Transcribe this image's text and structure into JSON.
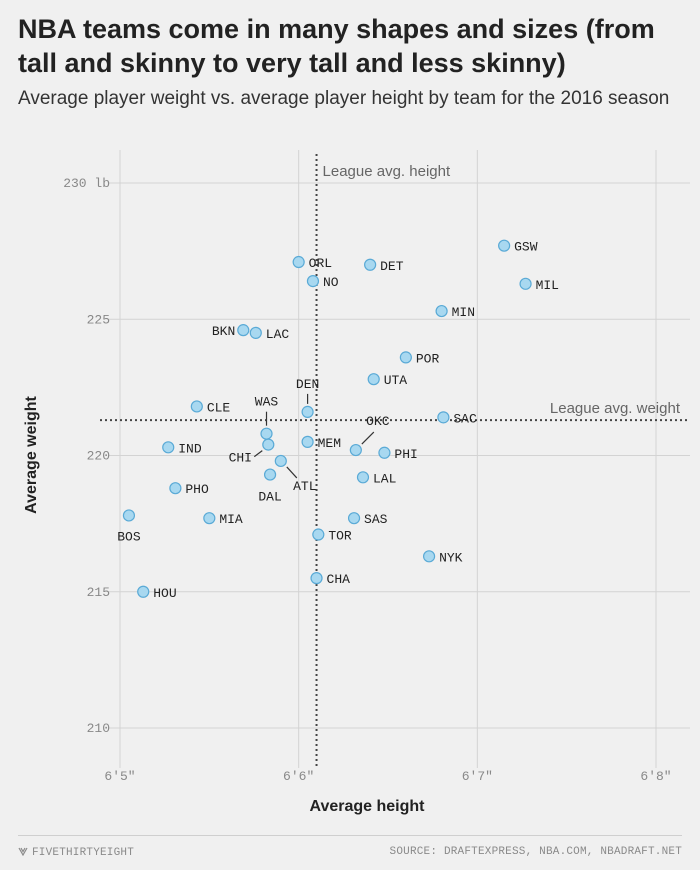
{
  "header": {
    "title": "NBA teams come in many shapes and sizes (from tall and skinny to very tall and less skinny)",
    "subtitle": "Average player weight vs. average player height by team for the 2016 season"
  },
  "footer": {
    "brand": "FIVETHIRTYEIGHT",
    "source": "SOURCE: DRAFTEXPRESS, NBA.COM, NBADRAFT.NET"
  },
  "chart_data": {
    "type": "scatter",
    "title": "NBA teams come in many shapes and sizes (from tall and skinny to very tall and less skinny)",
    "subtitle": "Average player weight vs. average player height by team for the 2016 season",
    "xlabel": "Average height",
    "ylabel": "Average weight",
    "x_unit": "inches",
    "xlim": [
      76.8,
      80.1
    ],
    "ylim": [
      209,
      231
    ],
    "x_ticks": [
      {
        "value": 77,
        "label": "6'5\""
      },
      {
        "value": 78,
        "label": "6'6\""
      },
      {
        "value": 79,
        "label": "6'7\""
      },
      {
        "value": 80,
        "label": "6'8\""
      }
    ],
    "y_ticks": [
      {
        "value": 210,
        "label": "210"
      },
      {
        "value": 215,
        "label": "215"
      },
      {
        "value": 220,
        "label": "220"
      },
      {
        "value": 225,
        "label": "225"
      },
      {
        "value": 230,
        "label": "230 lb"
      }
    ],
    "grid": true,
    "point_color": "#a8d8f0",
    "point_stroke": "#5aaad6",
    "reference_lines": [
      {
        "axis": "x",
        "value": 78.1,
        "label": "League avg. height"
      },
      {
        "axis": "y",
        "value": 221.3,
        "label": "League avg. weight"
      }
    ],
    "points": [
      {
        "team": "GSW",
        "x": 79.15,
        "y": 227.7
      },
      {
        "team": "MIL",
        "x": 79.27,
        "y": 226.3
      },
      {
        "team": "DET",
        "x": 78.4,
        "y": 227.0
      },
      {
        "team": "ORL",
        "x": 78.0,
        "y": 227.1
      },
      {
        "team": "NO",
        "x": 78.08,
        "y": 226.4
      },
      {
        "team": "MIN",
        "x": 78.8,
        "y": 225.3
      },
      {
        "team": "BKN",
        "x": 77.69,
        "y": 224.6
      },
      {
        "team": "LAC",
        "x": 77.76,
        "y": 224.5
      },
      {
        "team": "POR",
        "x": 78.6,
        "y": 223.6
      },
      {
        "team": "UTA",
        "x": 78.42,
        "y": 222.8
      },
      {
        "team": "DEN",
        "x": 78.05,
        "y": 221.6
      },
      {
        "team": "CLE",
        "x": 77.43,
        "y": 221.8
      },
      {
        "team": "WAS",
        "x": 77.82,
        "y": 220.8
      },
      {
        "team": "SAC",
        "x": 78.81,
        "y": 221.4
      },
      {
        "team": "OKC",
        "x": 78.32,
        "y": 220.2
      },
      {
        "team": "MEM",
        "x": 78.05,
        "y": 220.5
      },
      {
        "team": "PHI",
        "x": 78.48,
        "y": 220.1
      },
      {
        "team": "IND",
        "x": 77.27,
        "y": 220.3
      },
      {
        "team": "CHI",
        "x": 77.83,
        "y": 220.4
      },
      {
        "team": "ATL",
        "x": 77.9,
        "y": 219.8
      },
      {
        "team": "DAL",
        "x": 77.84,
        "y": 219.3
      },
      {
        "team": "LAL",
        "x": 78.36,
        "y": 219.2
      },
      {
        "team": "PHO",
        "x": 77.31,
        "y": 218.8
      },
      {
        "team": "BOS",
        "x": 77.05,
        "y": 217.8
      },
      {
        "team": "MIA",
        "x": 77.5,
        "y": 217.7
      },
      {
        "team": "SAS",
        "x": 78.31,
        "y": 217.7
      },
      {
        "team": "TOR",
        "x": 78.11,
        "y": 217.1
      },
      {
        "team": "NYK",
        "x": 78.73,
        "y": 216.3
      },
      {
        "team": "CHA",
        "x": 78.1,
        "y": 215.5
      },
      {
        "team": "HOU",
        "x": 77.13,
        "y": 215.0
      }
    ]
  }
}
